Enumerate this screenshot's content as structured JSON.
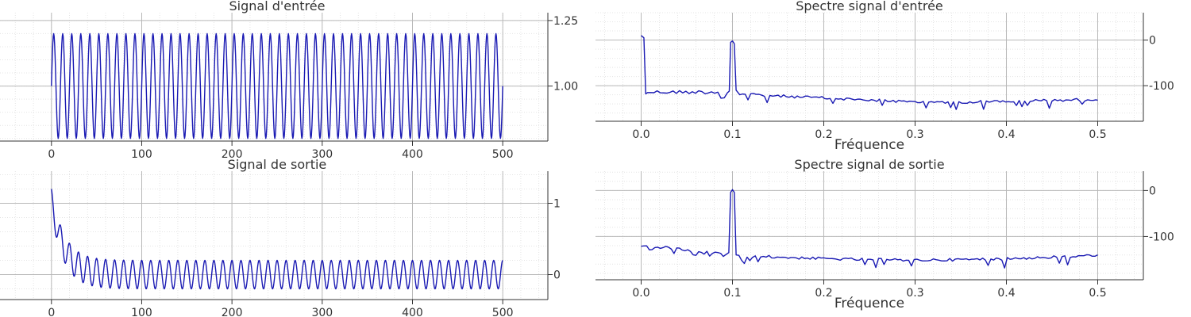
{
  "colors": {
    "line": "#1a1ab3",
    "axis": "#333333",
    "major_grid": "#b8b8b8",
    "minor_grid": "#e4e4e4",
    "background": "#ffffff"
  },
  "chart_data": [
    {
      "type": "line",
      "title": "Signal d'entrée",
      "xlabel": "",
      "ylabel": "",
      "xlim": [
        -57,
        550
      ],
      "ylim": [
        0.79,
        1.28
      ],
      "x_ticks": [
        "0",
        "100",
        "200",
        "300",
        "400",
        "500"
      ],
      "y_ticks": [
        "1.00",
        "1.25"
      ],
      "y_axis_side": "right",
      "grid": true,
      "signal": {
        "kind": "sine",
        "n_samples": 500,
        "frequency": 0.1,
        "offset": 1.0,
        "amplitude": 0.2
      },
      "series": [
        {
          "x_range": [
            0,
            500
          ],
          "min": 0.8,
          "max": 1.2
        }
      ]
    },
    {
      "type": "line",
      "title": "Signal de sortie",
      "xlabel": "",
      "ylabel": "",
      "xlim": [
        -57,
        550
      ],
      "ylim": [
        -0.35,
        1.45
      ],
      "x_ticks": [
        "0",
        "100",
        "200",
        "300",
        "400",
        "500"
      ],
      "y_ticks": [
        "0",
        "1"
      ],
      "y_axis_side": "right",
      "grid": true,
      "signal": {
        "kind": "filtered_sine",
        "n_samples": 500,
        "frequency": 0.1,
        "initial_value": 1.03,
        "decay_time": 14,
        "steady_amplitude": 0.2
      },
      "series": [
        {
          "x_range": [
            0,
            500
          ],
          "start": 1.03,
          "steady_min": -0.2,
          "steady_max": 0.2
        }
      ]
    },
    {
      "type": "line",
      "title": "Spectre signal d'entrée",
      "xlabel": "Fréquence",
      "ylabel": "",
      "xlim": [
        -0.05,
        0.55
      ],
      "ylim": [
        -178,
        60
      ],
      "x_ticks": [
        "0.0",
        "0.1",
        "0.2",
        "0.3",
        "0.4",
        "0.5"
      ],
      "y_ticks": [
        "-100",
        "0"
      ],
      "y_axis_side": "right",
      "grid": true,
      "series": [
        {
          "x": [
            0,
            0.003,
            0.005,
            0.006,
            0.0975,
            0.1,
            0.1025,
            0.105,
            0.5
          ],
          "peaks": [
            {
              "x": 0.002,
              "y": 10
            },
            {
              "x": 0.1,
              "y": -5
            }
          ],
          "noise_floor": [
            -115,
            -138
          ]
        }
      ]
    },
    {
      "type": "line",
      "title": "Spectre signal de sortie",
      "xlabel": "Fréquence",
      "ylabel": "",
      "xlim": [
        -0.05,
        0.55
      ],
      "ylim": [
        -194,
        42
      ],
      "x_ticks": [
        "0.0",
        "0.1",
        "0.2",
        "0.3",
        "0.4",
        "0.5"
      ],
      "y_ticks": [
        "-100",
        "0"
      ],
      "y_axis_side": "right",
      "grid": true,
      "series": [
        {
          "peaks": [
            {
              "x": 0.1,
              "y": 0
            }
          ],
          "noise_floor": [
            -120,
            -155
          ]
        }
      ]
    }
  ]
}
